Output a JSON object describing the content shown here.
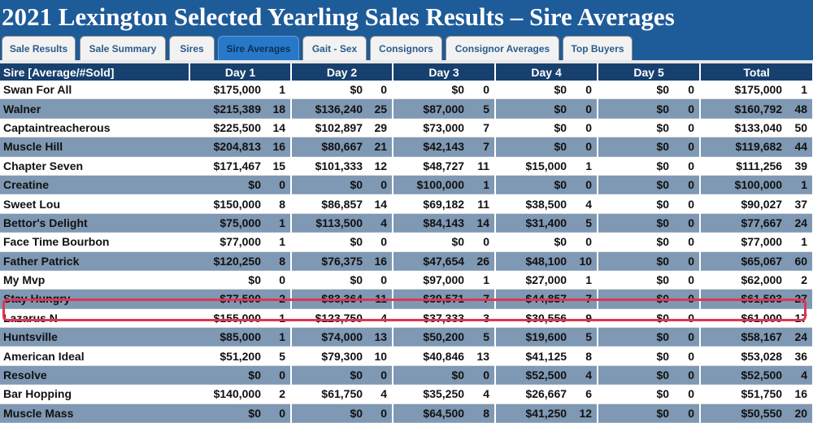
{
  "title": "2021 Lexington Selected Yearling Sales Results – Sire Averages",
  "tabs": [
    {
      "label": "Sale Results",
      "active": false
    },
    {
      "label": "Sale Summary",
      "active": false
    },
    {
      "label": "Sires",
      "active": false
    },
    {
      "label": "Sire Averages",
      "active": true
    },
    {
      "label": "Gait - Sex",
      "active": false
    },
    {
      "label": "Consignors",
      "active": false
    },
    {
      "label": "Consignor Averages",
      "active": false
    },
    {
      "label": "Top Buyers",
      "active": false
    }
  ],
  "table": {
    "headers": [
      "Sire [Average/#Sold]",
      "Day 1",
      "Day 2",
      "Day 3",
      "Day 4",
      "Day 5",
      "Total"
    ],
    "rows": [
      {
        "sire": "Swan For All",
        "days": [
          [
            "$175,000",
            "1"
          ],
          [
            "$0",
            "0"
          ],
          [
            "$0",
            "0"
          ],
          [
            "$0",
            "0"
          ],
          [
            "$0",
            "0"
          ],
          [
            "$175,000",
            "1"
          ]
        ]
      },
      {
        "sire": "Walner",
        "days": [
          [
            "$215,389",
            "18"
          ],
          [
            "$136,240",
            "25"
          ],
          [
            "$87,000",
            "5"
          ],
          [
            "$0",
            "0"
          ],
          [
            "$0",
            "0"
          ],
          [
            "$160,792",
            "48"
          ]
        ]
      },
      {
        "sire": "Captaintreacherous",
        "days": [
          [
            "$225,500",
            "14"
          ],
          [
            "$102,897",
            "29"
          ],
          [
            "$73,000",
            "7"
          ],
          [
            "$0",
            "0"
          ],
          [
            "$0",
            "0"
          ],
          [
            "$133,040",
            "50"
          ]
        ]
      },
      {
        "sire": "Muscle Hill",
        "days": [
          [
            "$204,813",
            "16"
          ],
          [
            "$80,667",
            "21"
          ],
          [
            "$42,143",
            "7"
          ],
          [
            "$0",
            "0"
          ],
          [
            "$0",
            "0"
          ],
          [
            "$119,682",
            "44"
          ]
        ]
      },
      {
        "sire": "Chapter Seven",
        "days": [
          [
            "$171,467",
            "15"
          ],
          [
            "$101,333",
            "12"
          ],
          [
            "$48,727",
            "11"
          ],
          [
            "$15,000",
            "1"
          ],
          [
            "$0",
            "0"
          ],
          [
            "$111,256",
            "39"
          ]
        ]
      },
      {
        "sire": "Creatine",
        "days": [
          [
            "$0",
            "0"
          ],
          [
            "$0",
            "0"
          ],
          [
            "$100,000",
            "1"
          ],
          [
            "$0",
            "0"
          ],
          [
            "$0",
            "0"
          ],
          [
            "$100,000",
            "1"
          ]
        ]
      },
      {
        "sire": "Sweet Lou",
        "days": [
          [
            "$150,000",
            "8"
          ],
          [
            "$86,857",
            "14"
          ],
          [
            "$69,182",
            "11"
          ],
          [
            "$38,500",
            "4"
          ],
          [
            "$0",
            "0"
          ],
          [
            "$90,027",
            "37"
          ]
        ]
      },
      {
        "sire": "Bettor's Delight",
        "days": [
          [
            "$75,000",
            "1"
          ],
          [
            "$113,500",
            "4"
          ],
          [
            "$84,143",
            "14"
          ],
          [
            "$31,400",
            "5"
          ],
          [
            "$0",
            "0"
          ],
          [
            "$77,667",
            "24"
          ]
        ]
      },
      {
        "sire": "Face Time Bourbon",
        "days": [
          [
            "$77,000",
            "1"
          ],
          [
            "$0",
            "0"
          ],
          [
            "$0",
            "0"
          ],
          [
            "$0",
            "0"
          ],
          [
            "$0",
            "0"
          ],
          [
            "$77,000",
            "1"
          ]
        ]
      },
      {
        "sire": "Father Patrick",
        "days": [
          [
            "$120,250",
            "8"
          ],
          [
            "$76,375",
            "16"
          ],
          [
            "$47,654",
            "26"
          ],
          [
            "$48,100",
            "10"
          ],
          [
            "$0",
            "0"
          ],
          [
            "$65,067",
            "60"
          ]
        ]
      },
      {
        "sire": "My Mvp",
        "days": [
          [
            "$0",
            "0"
          ],
          [
            "$0",
            "0"
          ],
          [
            "$97,000",
            "1"
          ],
          [
            "$27,000",
            "1"
          ],
          [
            "$0",
            "0"
          ],
          [
            "$62,000",
            "2"
          ]
        ]
      },
      {
        "sire": "Stay Hungry",
        "days": [
          [
            "$77,500",
            "2"
          ],
          [
            "$83,364",
            "11"
          ],
          [
            "$39,571",
            "7"
          ],
          [
            "$44,857",
            "7"
          ],
          [
            "$0",
            "0"
          ],
          [
            "$61,593",
            "27"
          ]
        ]
      },
      {
        "sire": "Lazarus N",
        "days": [
          [
            "$155,000",
            "1"
          ],
          [
            "$123,750",
            "4"
          ],
          [
            "$37,333",
            "3"
          ],
          [
            "$30,556",
            "9"
          ],
          [
            "$0",
            "0"
          ],
          [
            "$61,000",
            "17"
          ]
        ]
      },
      {
        "sire": "Huntsville",
        "days": [
          [
            "$85,000",
            "1"
          ],
          [
            "$74,000",
            "13"
          ],
          [
            "$50,200",
            "5"
          ],
          [
            "$19,600",
            "5"
          ],
          [
            "$0",
            "0"
          ],
          [
            "$58,167",
            "24"
          ]
        ]
      },
      {
        "sire": "American Ideal",
        "days": [
          [
            "$51,200",
            "5"
          ],
          [
            "$79,300",
            "10"
          ],
          [
            "$40,846",
            "13"
          ],
          [
            "$41,125",
            "8"
          ],
          [
            "$0",
            "0"
          ],
          [
            "$53,028",
            "36"
          ]
        ]
      },
      {
        "sire": "Resolve",
        "days": [
          [
            "$0",
            "0"
          ],
          [
            "$0",
            "0"
          ],
          [
            "$0",
            "0"
          ],
          [
            "$52,500",
            "4"
          ],
          [
            "$0",
            "0"
          ],
          [
            "$52,500",
            "4"
          ]
        ]
      },
      {
        "sire": "Bar Hopping",
        "days": [
          [
            "$140,000",
            "2"
          ],
          [
            "$61,750",
            "4"
          ],
          [
            "$35,250",
            "4"
          ],
          [
            "$26,667",
            "6"
          ],
          [
            "$0",
            "0"
          ],
          [
            "$51,750",
            "16"
          ]
        ]
      },
      {
        "sire": "Muscle Mass",
        "days": [
          [
            "$0",
            "0"
          ],
          [
            "$0",
            "0"
          ],
          [
            "$64,500",
            "8"
          ],
          [
            "$41,250",
            "12"
          ],
          [
            "$0",
            "0"
          ],
          [
            "$50,550",
            "20"
          ]
        ]
      }
    ]
  },
  "colors": {
    "background": "#1e5b99",
    "header_bg": "#17406e",
    "row_alt": "#7f98b3",
    "highlight": "#e03553"
  }
}
